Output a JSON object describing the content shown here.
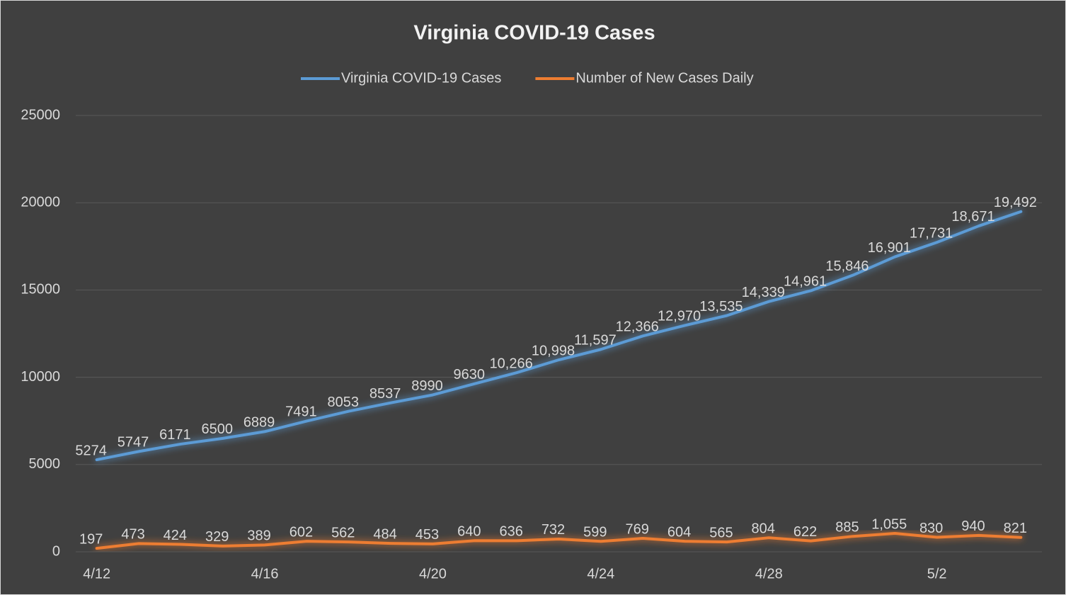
{
  "chart_data": {
    "type": "line",
    "title": "Virginia COVID-19 Cases",
    "categories": [
      "4/12",
      null,
      null,
      null,
      "4/16",
      null,
      null,
      null,
      "4/20",
      null,
      null,
      null,
      "4/24",
      null,
      null,
      null,
      "4/28",
      null,
      null,
      null,
      "5/2",
      null,
      null
    ],
    "series": [
      {
        "name": "Virginia COVID-19 Cases",
        "color": "#5b9bd5",
        "values": [
          5274,
          5747,
          6171,
          6500,
          6889,
          7491,
          8053,
          8537,
          8990,
          9630,
          10266,
          10998,
          11597,
          12366,
          12970,
          13535,
          14339,
          14961,
          15846,
          16901,
          17731,
          18671,
          19492
        ],
        "value_labels": [
          "5274",
          "5747",
          "6171",
          "6500",
          "6889",
          "7491",
          "8053",
          "8537",
          "8990",
          "9630",
          "10,266",
          "10,998",
          "11,597",
          "12,366",
          "12,970",
          "13,535",
          "14,339",
          "14,961",
          "15,846",
          "16,901",
          "17,731",
          "18,671",
          "19,492"
        ]
      },
      {
        "name": "Number of New Cases Daily",
        "color": "#ed7d31",
        "values": [
          197,
          473,
          424,
          329,
          389,
          602,
          562,
          484,
          453,
          640,
          636,
          732,
          599,
          769,
          604,
          565,
          804,
          622,
          885,
          1055,
          830,
          940,
          821
        ],
        "value_labels": [
          "197",
          "473",
          "424",
          "329",
          "389",
          "602",
          "562",
          "484",
          "453",
          "640",
          "636",
          "732",
          "599",
          "769",
          "604",
          "565",
          "804",
          "622",
          "885",
          "1,055",
          "830",
          "940",
          "821"
        ]
      }
    ],
    "ylim": [
      0,
      25000
    ],
    "yticks": [
      0,
      5000,
      10000,
      15000,
      20000,
      25000
    ],
    "grid": true,
    "legend": "top"
  }
}
